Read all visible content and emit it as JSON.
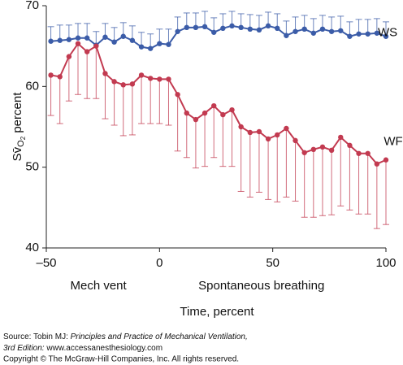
{
  "chart_data": {
    "type": "line",
    "y_label_parts": [
      "Sv̄",
      "O",
      "2",
      " percent"
    ],
    "x_label": "Time, percent",
    "annotations": [
      {
        "text": "Mech vent",
        "x": -27
      },
      {
        "text": "Spontaneous breathing",
        "x": 45
      }
    ],
    "x": [
      -48,
      -44,
      -40,
      -36,
      -32,
      -28,
      -24,
      -20,
      -16,
      -12,
      -8,
      -4,
      0,
      4,
      8,
      12,
      16,
      20,
      24,
      28,
      32,
      36,
      40,
      44,
      48,
      52,
      56,
      60,
      64,
      68,
      72,
      76,
      80,
      84,
      88,
      92,
      96,
      100
    ],
    "series": [
      {
        "name": "WS",
        "color": "#3b5ca8",
        "error_side": "upper",
        "values": [
          65.6,
          65.7,
          65.8,
          66.0,
          66.0,
          65.1,
          66.1,
          65.5,
          66.2,
          65.7,
          64.9,
          64.7,
          65.3,
          65.2,
          66.8,
          67.3,
          67.3,
          67.4,
          66.7,
          67.2,
          67.5,
          67.3,
          67.1,
          67.0,
          67.5,
          67.2,
          66.3,
          66.8,
          67.1,
          66.6,
          67.1,
          66.8,
          66.9,
          66.2,
          66.5,
          66.5,
          66.6,
          66.2
        ],
        "errors": [
          1.8,
          1.9,
          1.8,
          1.8,
          1.8,
          1.7,
          1.7,
          1.8,
          1.7,
          1.8,
          1.8,
          1.8,
          1.8,
          1.9,
          1.8,
          1.8,
          1.8,
          1.9,
          1.8,
          1.8,
          1.8,
          1.7,
          1.8,
          1.8,
          1.7,
          1.8,
          1.8,
          1.8,
          1.7,
          1.8,
          1.7,
          1.8,
          1.8,
          1.8,
          1.8,
          1.8,
          1.8,
          1.8
        ]
      },
      {
        "name": "WF",
        "color": "#c23a50",
        "error_side": "lower",
        "values": [
          61.4,
          61.2,
          63.7,
          65.3,
          64.3,
          65.0,
          61.6,
          60.6,
          60.2,
          60.3,
          61.4,
          61.0,
          60.9,
          60.9,
          59.0,
          56.7,
          55.9,
          56.7,
          57.6,
          56.5,
          57.1,
          55.0,
          54.3,
          54.4,
          53.5,
          54.0,
          54.8,
          53.3,
          51.8,
          52.2,
          52.5,
          52.1,
          53.7,
          52.7,
          51.7,
          51.7,
          50.4,
          50.9
        ],
        "errors": [
          5.0,
          5.8,
          5.5,
          6.3,
          5.8,
          6.5,
          5.6,
          5.4,
          6.3,
          6.3,
          6.0,
          5.6,
          5.5,
          5.7,
          7.0,
          5.5,
          6.0,
          6.6,
          6.4,
          6.4,
          7.0,
          8.0,
          8.0,
          7.5,
          7.5,
          8.3,
          8.5,
          7.5,
          8.0,
          8.4,
          8.5,
          8.0,
          8.5,
          8.0,
          7.5,
          7.5,
          8.0,
          8.0
        ]
      }
    ],
    "xlim": [
      -50,
      100
    ],
    "xticks": [
      {
        "value": -50,
        "label": "–50"
      },
      0,
      50,
      100
    ],
    "ylim": [
      40,
      70
    ],
    "yticks": [
      40,
      50,
      60,
      70
    ],
    "source": {
      "line1_plain": "Source: Tobin MJ: ",
      "line1_italic": "Principles and Practice of Mechanical Ventilation,",
      "line2_italic": "3rd Edition: ",
      "line2_plain": "www.accessanesthesiology.com",
      "line3": "Copyright © The McGraw-Hill Companies, Inc. All rights reserved."
    }
  }
}
